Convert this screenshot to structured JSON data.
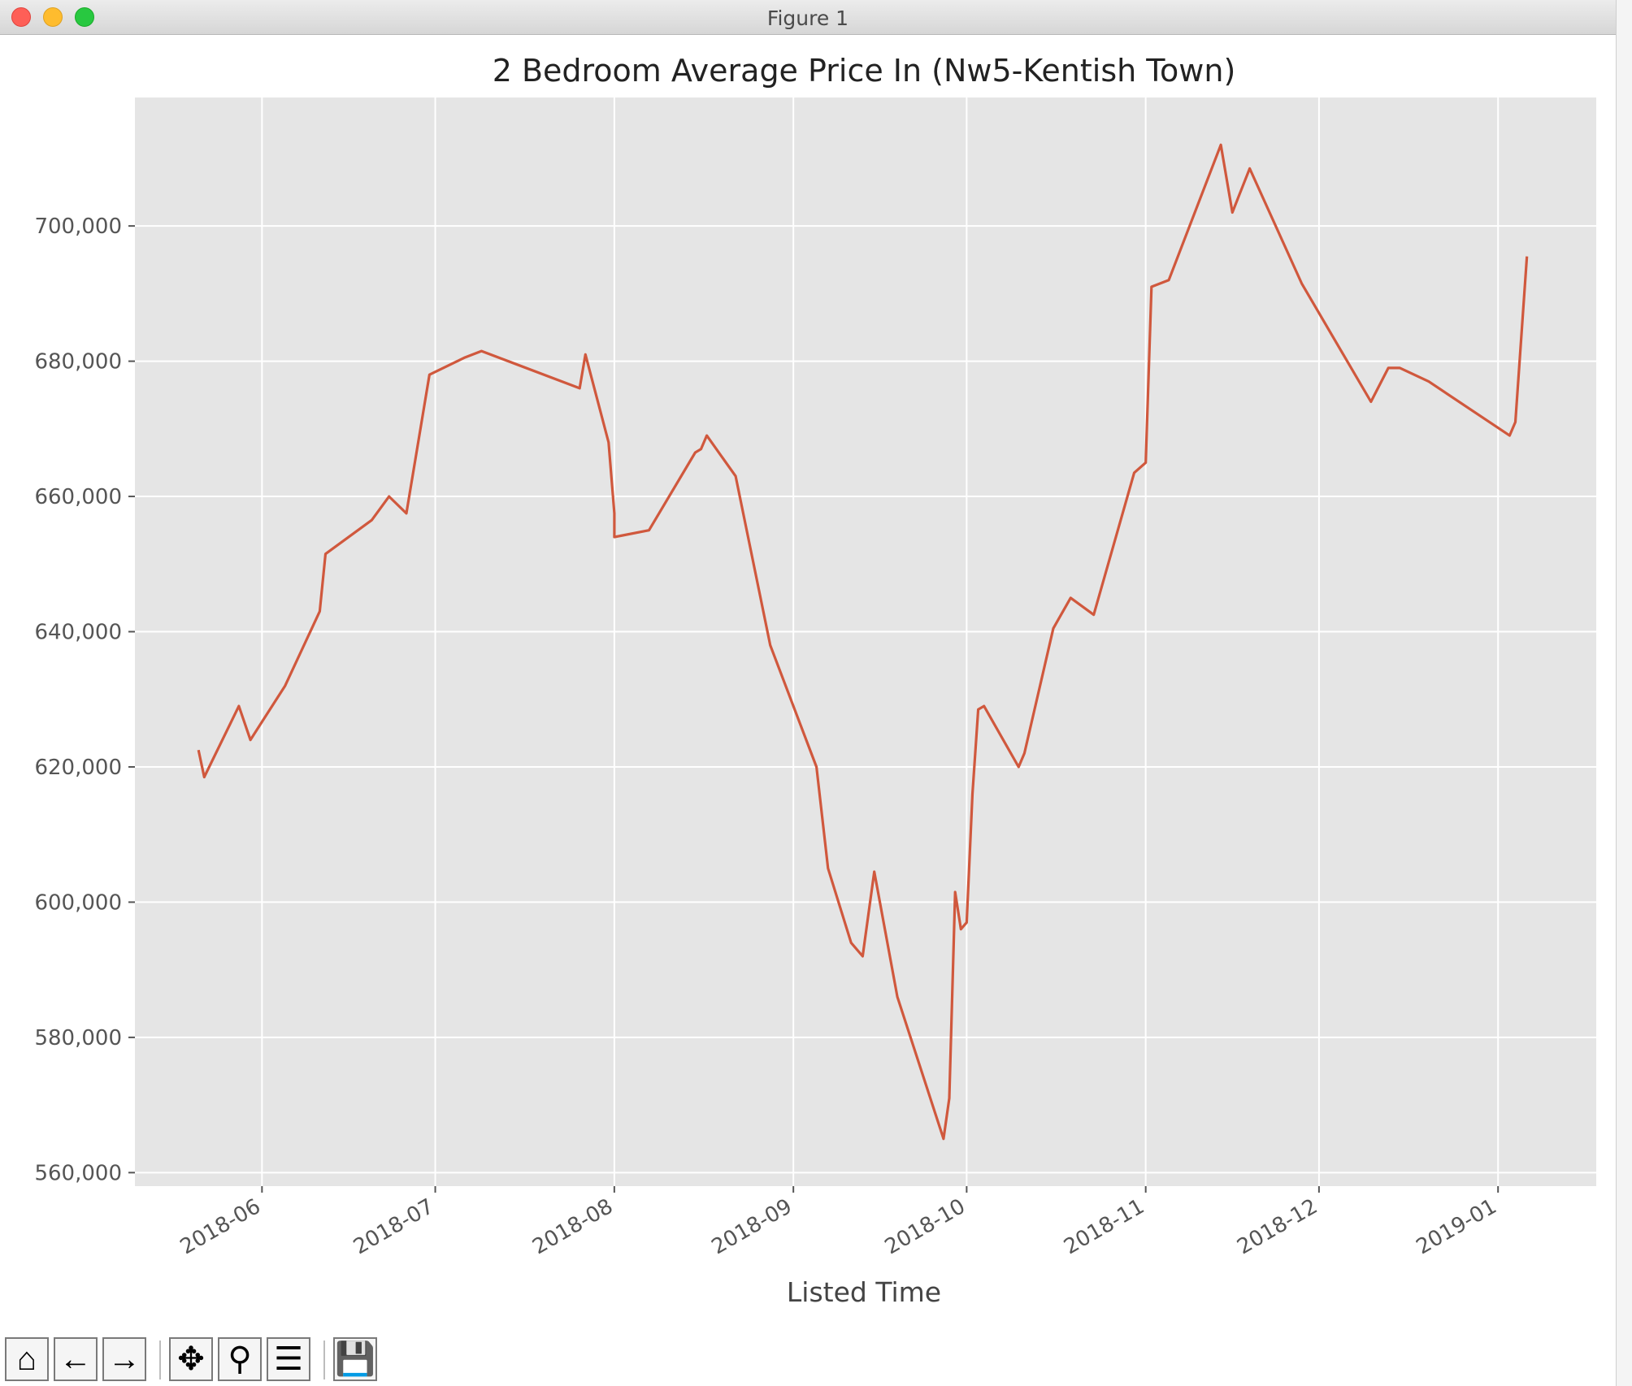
{
  "window": {
    "title": "Figure 1"
  },
  "colors": {
    "line": "#d0583d",
    "plot_bg": "#e5e5e5",
    "grid": "#ffffff",
    "tick": "#555555",
    "text": "#222222"
  },
  "toolbar": {
    "buttons": [
      {
        "name": "home-button",
        "icon": "home-icon",
        "glyph": "⌂"
      },
      {
        "name": "back-button",
        "icon": "arrow-left-icon",
        "glyph": "←"
      },
      {
        "name": "forward-button",
        "icon": "arrow-right-icon",
        "glyph": "→"
      },
      {
        "name": "pan-button",
        "icon": "move-icon",
        "glyph": "✥"
      },
      {
        "name": "zoom-button",
        "icon": "magnifier-icon",
        "glyph": "⚲"
      },
      {
        "name": "configure-subplots-button",
        "icon": "sliders-icon",
        "glyph": "☰"
      },
      {
        "name": "save-button",
        "icon": "floppy-disk-icon",
        "glyph": "💾"
      }
    ]
  },
  "chart_data": {
    "type": "line",
    "title": "2 Bedroom Average Price In (Nw5-Kentish Town)",
    "xlabel": "Listed Time",
    "ylabel": "",
    "grid": true,
    "legend": "none",
    "xlim": [
      "2018-05-10",
      "2019-01-18"
    ],
    "ylim": [
      558000,
      719000
    ],
    "x_ticks": [
      "2018-06",
      "2018-07",
      "2018-08",
      "2018-09",
      "2018-10",
      "2018-11",
      "2018-12",
      "2019-01"
    ],
    "y_ticks": [
      560000,
      580000,
      600000,
      620000,
      640000,
      660000,
      680000,
      700000
    ],
    "y_tick_labels": [
      "560,000",
      "580,000",
      "600,000",
      "620,000",
      "640,000",
      "660,000",
      "680,000",
      "700,000"
    ],
    "series": [
      {
        "x": [
          "2018-05-21",
          "2018-05-22",
          "2018-05-28",
          "2018-05-30",
          "2018-06-05",
          "2018-06-11",
          "2018-06-12",
          "2018-06-20",
          "2018-06-23",
          "2018-06-26",
          "2018-06-30",
          "2018-07-06",
          "2018-07-09",
          "2018-07-26",
          "2018-07-27",
          "2018-07-31",
          "2018-08-01",
          "2018-08-01",
          "2018-08-07",
          "2018-08-15",
          "2018-08-16",
          "2018-08-17",
          "2018-08-22",
          "2018-08-28",
          "2018-09-05",
          "2018-09-07",
          "2018-09-11",
          "2018-09-13",
          "2018-09-15",
          "2018-09-19",
          "2018-09-27",
          "2018-09-28",
          "2018-09-29",
          "2018-09-30",
          "2018-10-01",
          "2018-10-02",
          "2018-10-03",
          "2018-10-04",
          "2018-10-10",
          "2018-10-11",
          "2018-10-16",
          "2018-10-19",
          "2018-10-23",
          "2018-10-30",
          "2018-11-01",
          "2018-11-02",
          "2018-11-05",
          "2018-11-14",
          "2018-11-16",
          "2018-11-19",
          "2018-11-28",
          "2018-12-10",
          "2018-12-13",
          "2018-12-15",
          "2018-12-20",
          "2019-01-03",
          "2019-01-04",
          "2019-01-06"
        ],
        "y": [
          622500,
          618500,
          629000,
          624000,
          632000,
          643000,
          651500,
          656500,
          660000,
          657500,
          678000,
          680500,
          681500,
          676000,
          681000,
          668000,
          657500,
          654000,
          655000,
          666500,
          667000,
          669000,
          663000,
          638000,
          620000,
          605000,
          594000,
          592000,
          604500,
          586000,
          565000,
          571000,
          601500,
          596000,
          597000,
          616000,
          628500,
          629000,
          620000,
          622000,
          640500,
          645000,
          642500,
          663500,
          665000,
          691000,
          692000,
          712000,
          702000,
          708500,
          691500,
          674000,
          679000,
          679000,
          677000,
          669000,
          671000,
          695500
        ]
      }
    ]
  }
}
